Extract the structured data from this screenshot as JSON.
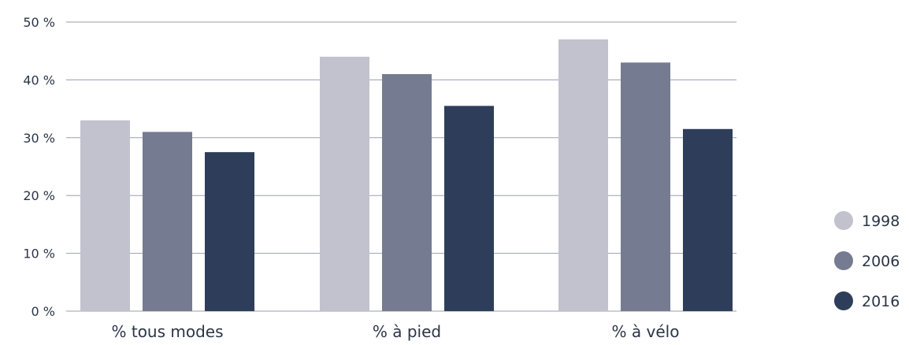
{
  "chart_data": {
    "type": "bar",
    "categories": [
      "% tous modes",
      "% à pied",
      "% à vélo"
    ],
    "series": [
      {
        "name": "1998",
        "color": "#c2c2ce",
        "values": [
          33,
          44,
          47
        ]
      },
      {
        "name": "2006",
        "color": "#757b91",
        "values": [
          31,
          41,
          43
        ]
      },
      {
        "name": "2016",
        "color": "#2e3e5a",
        "values": [
          27.5,
          35.5,
          31.5
        ]
      }
    ],
    "yticks": [
      {
        "value": 0,
        "label": "0 %"
      },
      {
        "value": 10,
        "label": "10 %"
      },
      {
        "value": 20,
        "label": "20 %"
      },
      {
        "value": 30,
        "label": "30 %"
      },
      {
        "value": 40,
        "label": "40 %"
      },
      {
        "value": 50,
        "label": "50 %"
      }
    ],
    "ylim": [
      0,
      50
    ],
    "grid": true,
    "legend_position": "right",
    "gridline_color": "#9a9fad",
    "text_color": "#2b3547"
  }
}
